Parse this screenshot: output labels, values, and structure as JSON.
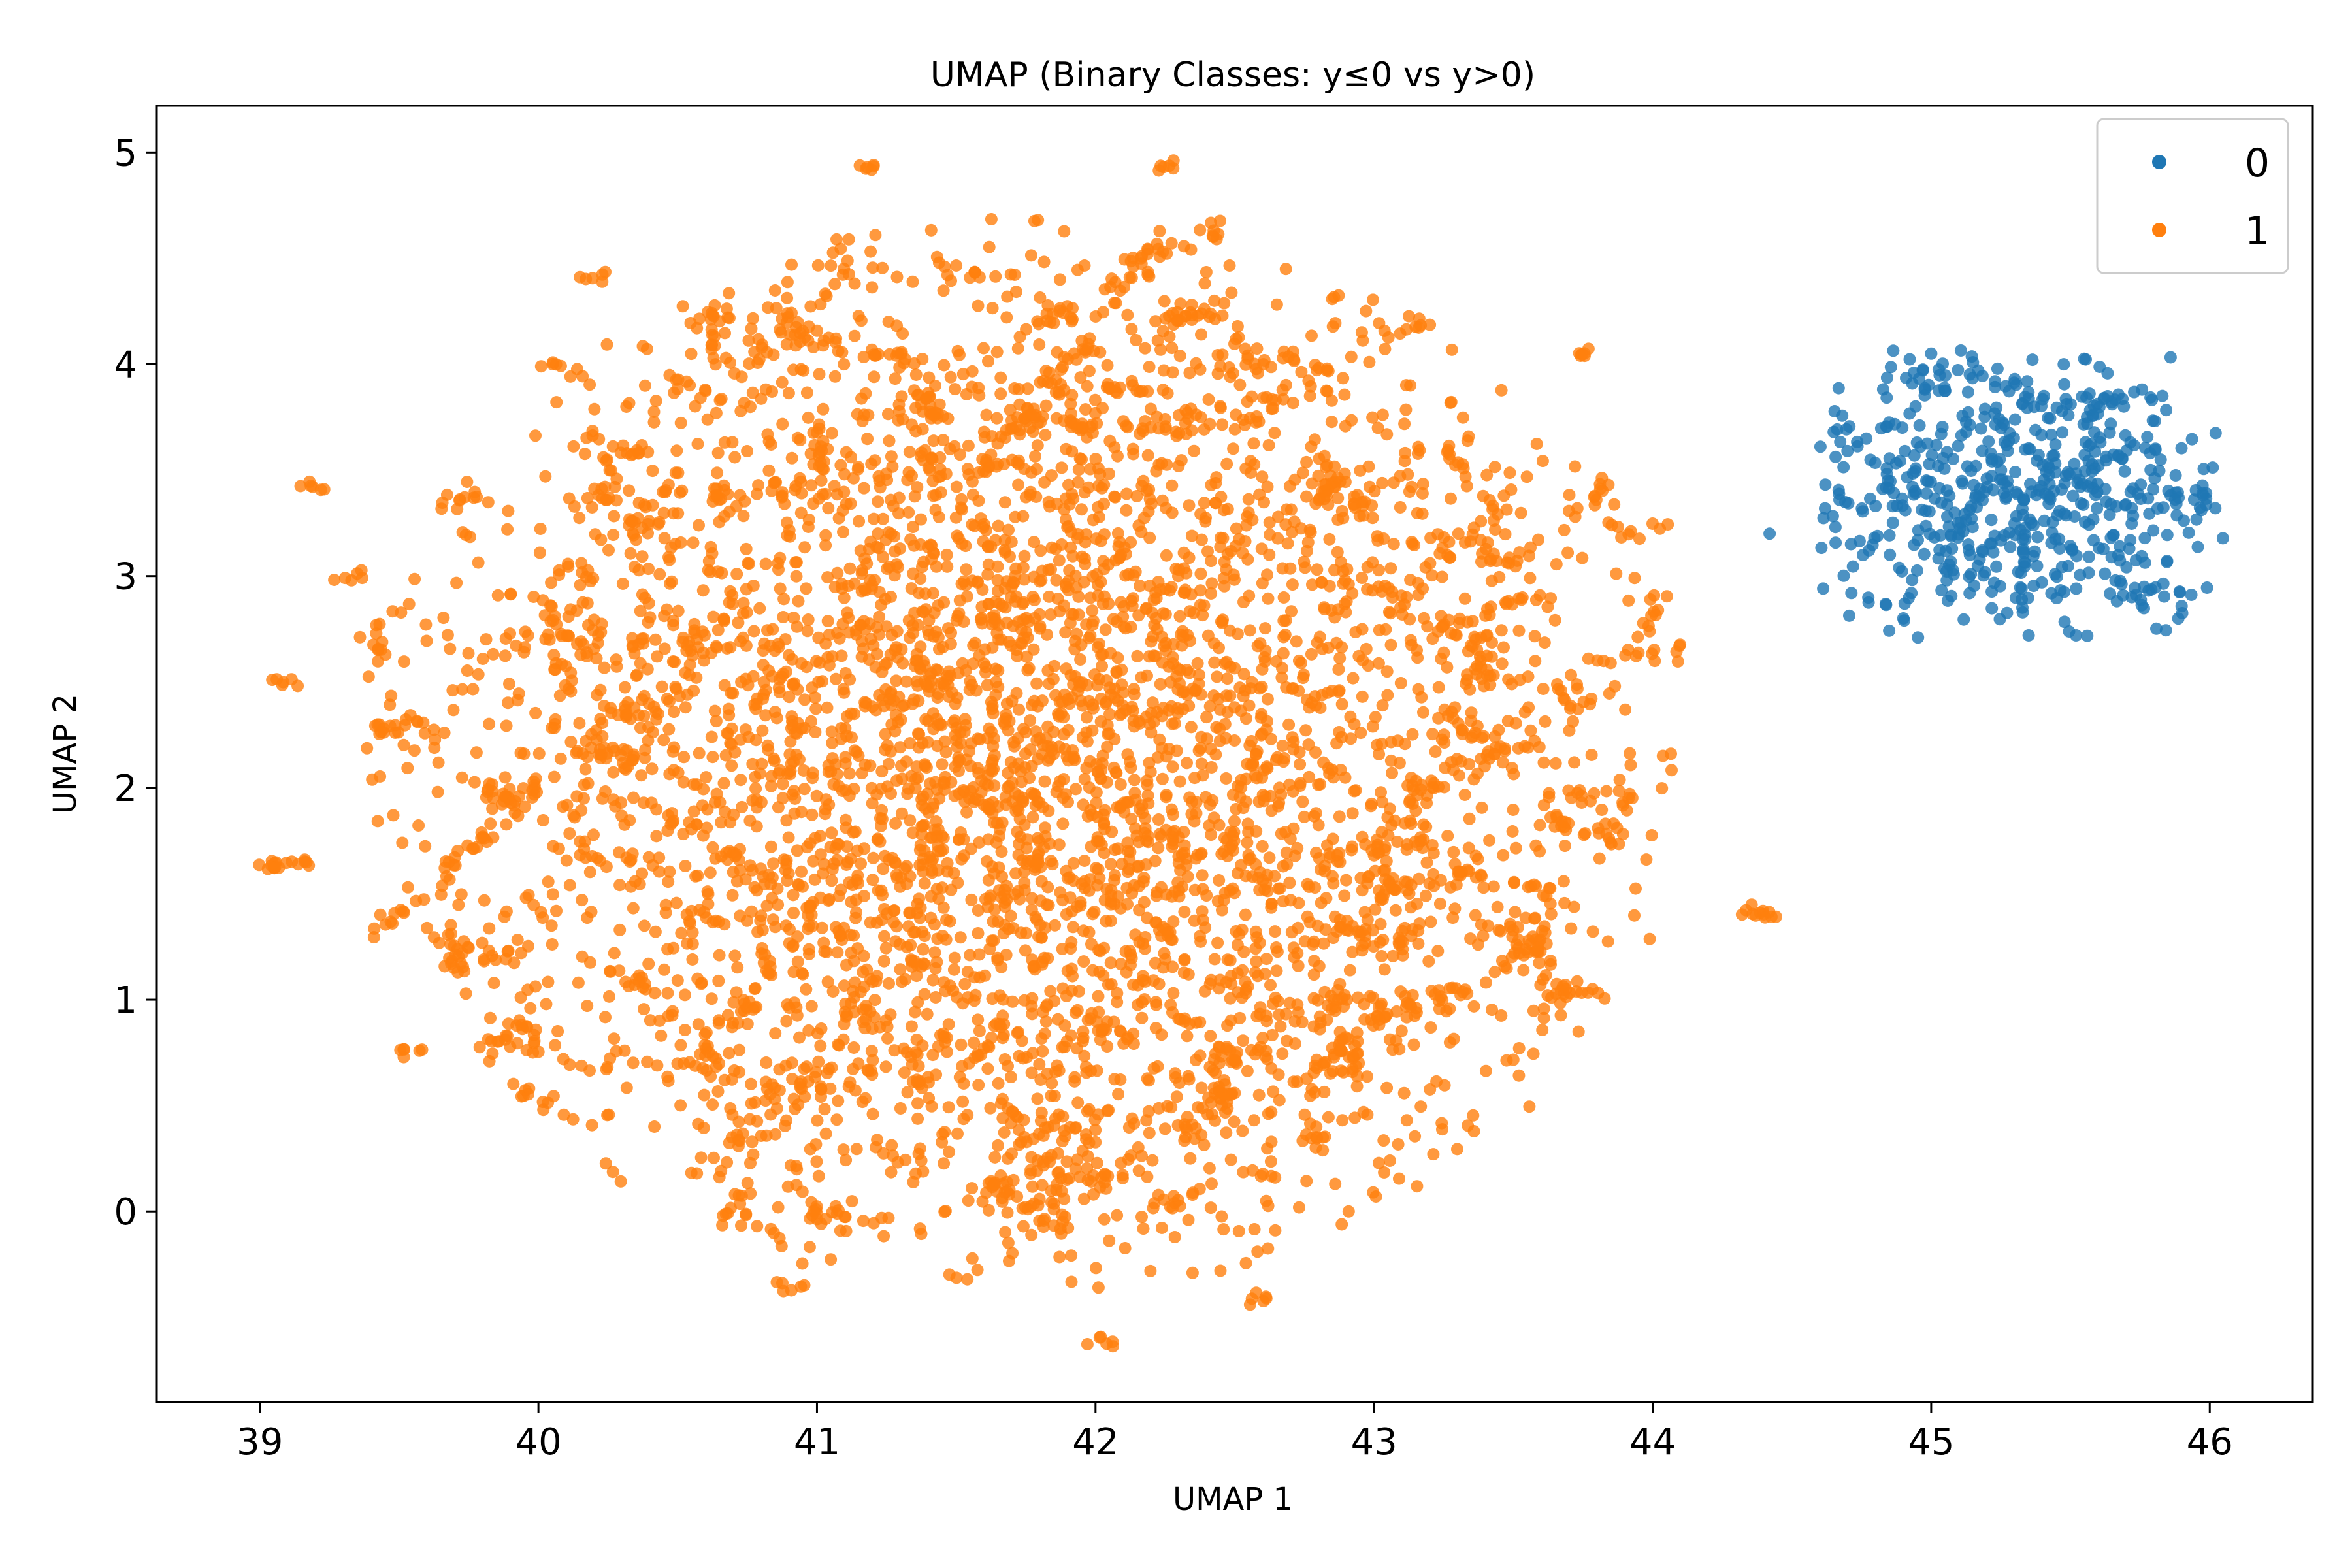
{
  "chart_data": {
    "type": "scatter",
    "title": "UMAP (Binary Classes: y≤0 vs y>0)",
    "xlabel": "UMAP 1",
    "ylabel": "UMAP 2",
    "xlim": [
      38.63,
      46.37
    ],
    "ylim": [
      -0.9,
      5.22
    ],
    "xticks": [
      39,
      40,
      41,
      42,
      43,
      44,
      45,
      46
    ],
    "yticks": [
      0,
      1,
      2,
      3,
      4,
      5
    ],
    "xtick_labels": [
      "39",
      "40",
      "41",
      "42",
      "43",
      "44",
      "45",
      "46"
    ],
    "ytick_labels": [
      "0",
      "1",
      "2",
      "3",
      "4",
      "5"
    ],
    "grid": false,
    "legend_position": "top-right",
    "point_alpha": 0.8,
    "series": [
      {
        "name": "0",
        "color": "#1f77b4",
        "approx_count": 600,
        "clusters": [
          {
            "cx": 45.25,
            "cy": 3.35,
            "sx": 0.38,
            "sy": 0.32,
            "n": 520
          },
          {
            "cx": 45.0,
            "cy": 3.95,
            "sx": 0.12,
            "sy": 0.06,
            "n": 25
          },
          {
            "cx": 45.6,
            "cy": 3.8,
            "sx": 0.15,
            "sy": 0.06,
            "n": 30
          },
          {
            "cx": 45.8,
            "cy": 2.9,
            "sx": 0.06,
            "sy": 0.05,
            "n": 15
          },
          {
            "cx": 45.95,
            "cy": 3.35,
            "sx": 0.06,
            "sy": 0.05,
            "n": 15
          }
        ],
        "points": [
          [
            44.42,
            3.2
          ],
          [
            45.0,
            4.05
          ],
          [
            46.02,
            3.32
          ],
          [
            45.52,
            2.72
          ],
          [
            45.83,
            3.85
          ],
          [
            44.65,
            3.68
          ],
          [
            45.3,
            3.93
          ],
          [
            45.72,
            2.9
          ],
          [
            44.9,
            2.8
          ],
          [
            45.35,
            2.72
          ]
        ]
      },
      {
        "name": "1",
        "color": "#ff7f0e",
        "approx_count": 6000,
        "main_cloud": {
          "cx": 41.75,
          "cy": 2.15,
          "sx": 1.05,
          "sy": 1.2,
          "n": 4200
        },
        "tuft_ring": {
          "cx": 41.75,
          "cy": 2.15,
          "rx": 2.3,
          "ry": 2.45,
          "count": 130,
          "per_tuft": 10
        },
        "points": [
          [
            39.02,
            1.63
          ],
          [
            39.08,
            1.64
          ],
          [
            39.15,
            1.65
          ],
          [
            39.18,
            3.42
          ],
          [
            39.1,
            2.5
          ],
          [
            39.35,
            3.0
          ],
          [
            42.0,
            -0.62
          ],
          [
            41.2,
            4.93
          ],
          [
            42.25,
            4.93
          ],
          [
            44.35,
            1.42
          ],
          [
            44.42,
            1.4
          ],
          [
            43.2,
            2.0
          ],
          [
            40.05,
            4.0
          ],
          [
            40.2,
            4.42
          ],
          [
            39.55,
            0.75
          ],
          [
            40.9,
            -0.35
          ],
          [
            42.6,
            -0.42
          ],
          [
            43.75,
            4.05
          ]
        ]
      }
    ]
  }
}
